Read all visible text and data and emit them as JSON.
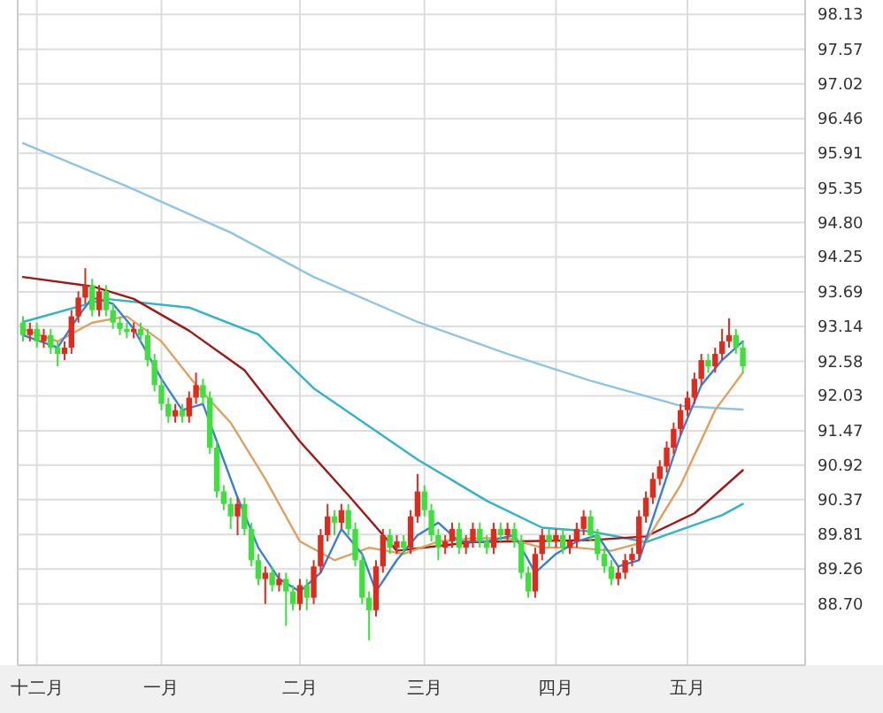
{
  "chart_data": {
    "type": "candlestick",
    "categories": [
      null,
      null,
      "十二月",
      null,
      null,
      null,
      null,
      null,
      null,
      null,
      null,
      null,
      null,
      null,
      null,
      null,
      null,
      null,
      null,
      null,
      "一月",
      null,
      null,
      null,
      null,
      null,
      null,
      null,
      null,
      null,
      null,
      null,
      null,
      null,
      null,
      null,
      null,
      null,
      null,
      null,
      "二月",
      null,
      null,
      null,
      null,
      null,
      null,
      null,
      null,
      null,
      null,
      null,
      null,
      null,
      null,
      null,
      null,
      null,
      "三月",
      null,
      null,
      null,
      null,
      null,
      null,
      null,
      null,
      null,
      null,
      null,
      null,
      null,
      null,
      null,
      null,
      null,
      null,
      "四月",
      null,
      null,
      null,
      null,
      null,
      null,
      null,
      null,
      null,
      null,
      null,
      null,
      null,
      null,
      null,
      null,
      null,
      null,
      "五月",
      null,
      null,
      null,
      null,
      null,
      null,
      null,
      null
    ],
    "ohlc": [
      [
        93.2,
        93.3,
        92.9,
        93.0
      ],
      [
        93.0,
        93.2,
        92.9,
        93.1
      ],
      [
        93.1,
        93.2,
        92.8,
        92.9
      ],
      [
        92.9,
        93.1,
        92.8,
        93.0
      ],
      [
        93.0,
        93.1,
        92.7,
        92.8
      ],
      [
        92.8,
        92.9,
        92.5,
        92.7
      ],
      [
        92.7,
        92.9,
        92.6,
        92.8
      ],
      [
        92.8,
        93.4,
        92.7,
        93.3
      ],
      [
        93.3,
        93.7,
        93.2,
        93.6
      ],
      [
        93.6,
        94.07,
        93.5,
        93.8
      ],
      [
        93.8,
        93.9,
        93.3,
        93.4
      ],
      [
        93.4,
        93.8,
        93.3,
        93.7
      ],
      [
        93.7,
        93.8,
        93.3,
        93.4
      ],
      [
        93.4,
        93.5,
        93.1,
        93.2
      ],
      [
        93.2,
        93.3,
        93.0,
        93.1
      ],
      [
        93.1,
        93.2,
        92.95,
        93.05
      ],
      [
        93.05,
        93.2,
        92.95,
        93.1
      ],
      [
        93.1,
        93.2,
        92.9,
        93.0
      ],
      [
        93.0,
        93.1,
        92.5,
        92.6
      ],
      [
        92.6,
        92.7,
        92.1,
        92.2
      ],
      [
        92.2,
        92.3,
        91.8,
        91.9
      ],
      [
        91.9,
        92.0,
        91.6,
        91.7
      ],
      [
        91.7,
        91.9,
        91.6,
        91.8
      ],
      [
        91.8,
        91.9,
        91.6,
        91.7
      ],
      [
        91.7,
        92.1,
        91.6,
        92.0
      ],
      [
        92.0,
        92.4,
        91.9,
        92.2
      ],
      [
        92.2,
        92.3,
        91.9,
        92.0
      ],
      [
        92.0,
        92.1,
        91.1,
        91.2
      ],
      [
        91.2,
        91.3,
        90.4,
        90.5
      ],
      [
        90.5,
        90.6,
        90.2,
        90.3
      ],
      [
        90.3,
        90.4,
        89.9,
        90.1
      ],
      [
        90.1,
        90.4,
        89.8,
        90.3
      ],
      [
        90.3,
        90.4,
        89.8,
        89.9
      ],
      [
        89.9,
        90.0,
        89.3,
        89.4
      ],
      [
        89.4,
        89.5,
        89.0,
        89.1
      ],
      [
        89.1,
        89.3,
        88.7,
        89.2
      ],
      [
        89.2,
        89.3,
        88.9,
        89.0
      ],
      [
        89.0,
        89.2,
        88.9,
        89.1
      ],
      [
        89.1,
        89.2,
        88.35,
        88.9
      ],
      [
        88.9,
        89.0,
        88.6,
        88.7
      ],
      [
        88.7,
        89.1,
        88.6,
        89.0
      ],
      [
        89.0,
        89.1,
        88.6,
        88.8
      ],
      [
        88.8,
        89.4,
        88.7,
        89.3
      ],
      [
        89.3,
        89.9,
        89.2,
        89.8
      ],
      [
        89.8,
        90.3,
        89.7,
        90.1
      ],
      [
        90.1,
        90.2,
        89.8,
        90.0
      ],
      [
        90.0,
        90.3,
        89.9,
        90.2
      ],
      [
        90.2,
        90.3,
        89.8,
        89.9
      ],
      [
        89.9,
        90.0,
        89.3,
        89.4
      ],
      [
        89.4,
        89.5,
        88.7,
        88.8
      ],
      [
        88.8,
        88.9,
        88.12,
        88.6
      ],
      [
        88.6,
        89.4,
        88.5,
        89.3
      ],
      [
        89.3,
        89.9,
        89.2,
        89.8
      ],
      [
        89.8,
        89.9,
        89.5,
        89.6
      ],
      [
        89.6,
        89.8,
        89.5,
        89.7
      ],
      [
        89.7,
        89.8,
        89.5,
        89.6
      ],
      [
        89.6,
        90.2,
        89.5,
        90.1
      ],
      [
        90.1,
        90.78,
        90.0,
        90.5
      ],
      [
        90.5,
        90.6,
        90.1,
        90.2
      ],
      [
        90.2,
        90.3,
        89.7,
        89.8
      ],
      [
        89.8,
        89.9,
        89.4,
        89.6
      ],
      [
        89.6,
        89.8,
        89.5,
        89.7
      ],
      [
        89.7,
        90.0,
        89.6,
        89.9
      ],
      [
        89.9,
        90.0,
        89.5,
        89.6
      ],
      [
        89.6,
        89.8,
        89.5,
        89.7
      ],
      [
        89.7,
        90.0,
        89.6,
        89.9
      ],
      [
        89.9,
        90.0,
        89.6,
        89.7
      ],
      [
        89.7,
        89.8,
        89.5,
        89.6
      ],
      [
        89.6,
        90.0,
        89.5,
        89.9
      ],
      [
        89.9,
        90.0,
        89.7,
        89.8
      ],
      [
        89.8,
        90.0,
        89.7,
        89.9
      ],
      [
        89.9,
        90.0,
        89.6,
        89.7
      ],
      [
        89.7,
        89.8,
        89.1,
        89.2
      ],
      [
        89.2,
        89.3,
        88.8,
        88.9
      ],
      [
        88.9,
        89.6,
        88.8,
        89.5
      ],
      [
        89.5,
        89.9,
        89.4,
        89.8
      ],
      [
        89.8,
        89.9,
        89.6,
        89.7
      ],
      [
        89.7,
        89.9,
        89.6,
        89.8
      ],
      [
        89.8,
        89.9,
        89.5,
        89.6
      ],
      [
        89.6,
        89.8,
        89.5,
        89.7
      ],
      [
        89.7,
        90.0,
        89.6,
        89.9
      ],
      [
        89.9,
        90.2,
        89.8,
        90.1
      ],
      [
        90.1,
        90.2,
        89.7,
        89.8
      ],
      [
        89.8,
        89.9,
        89.4,
        89.5
      ],
      [
        89.5,
        89.6,
        89.2,
        89.3
      ],
      [
        89.3,
        89.4,
        89.0,
        89.1
      ],
      [
        89.1,
        89.3,
        89.0,
        89.2
      ],
      [
        89.2,
        89.5,
        89.1,
        89.4
      ],
      [
        89.4,
        89.6,
        89.3,
        89.5
      ],
      [
        89.5,
        90.2,
        89.4,
        90.1
      ],
      [
        90.1,
        90.5,
        90.0,
        90.4
      ],
      [
        90.4,
        90.8,
        90.3,
        90.7
      ],
      [
        90.7,
        91.0,
        90.6,
        90.9
      ],
      [
        90.9,
        91.3,
        90.8,
        91.2
      ],
      [
        91.2,
        91.6,
        91.1,
        91.5
      ],
      [
        91.5,
        91.9,
        91.4,
        91.8
      ],
      [
        91.8,
        92.1,
        91.7,
        92.0
      ],
      [
        92.0,
        92.4,
        91.9,
        92.3
      ],
      [
        92.3,
        92.7,
        92.2,
        92.6
      ],
      [
        92.6,
        92.7,
        92.4,
        92.5
      ],
      [
        92.5,
        92.8,
        92.4,
        92.7
      ],
      [
        92.7,
        93.1,
        92.6,
        92.9
      ],
      [
        92.9,
        93.27,
        92.8,
        93.0
      ],
      [
        93.0,
        93.1,
        92.7,
        92.8
      ],
      [
        92.8,
        92.9,
        92.4,
        92.5
      ]
    ],
    "colors": [
      "#3de03d",
      "#e02a1e",
      "#3de03d",
      "#e02a1e",
      "#3de03d",
      "#3de03d",
      "#e02a1e",
      "#e02a1e",
      "#e02a1e",
      "#e02a1e",
      "#3de03d",
      "#e02a1e",
      "#3de03d",
      "#3de03d",
      "#3de03d",
      "#3de03d",
      "#e02a1e",
      "#3de03d",
      "#3de03d",
      "#3de03d",
      "#3de03d",
      "#3de03d",
      "#e02a1e",
      "#3de03d",
      "#e02a1e",
      "#e02a1e",
      "#3de03d",
      "#3de03d",
      "#3de03d",
      "#3de03d",
      "#3de03d",
      "#e02a1e",
      "#3de03d",
      "#3de03d",
      "#3de03d",
      "#e02a1e",
      "#3de03d",
      "#e02a1e",
      "#3de03d",
      "#3de03d",
      "#e02a1e",
      "#3de03d",
      "#e02a1e",
      "#e02a1e",
      "#e02a1e",
      "#3de03d",
      "#e02a1e",
      "#3de03d",
      "#3de03d",
      "#3de03d",
      "#3de03d",
      "#e02a1e",
      "#e02a1e",
      "#3de03d",
      "#e02a1e",
      "#3de03d",
      "#e02a1e",
      "#e02a1e",
      "#3de03d",
      "#3de03d",
      "#3de03d",
      "#e02a1e",
      "#e02a1e",
      "#3de03d",
      "#e02a1e",
      "#e02a1e",
      "#3de03d",
      "#3de03d",
      "#e02a1e",
      "#3de03d",
      "#e02a1e",
      "#3de03d",
      "#3de03d",
      "#3de03d",
      "#e02a1e",
      "#e02a1e",
      "#3de03d",
      "#e02a1e",
      "#3de03d",
      "#e02a1e",
      "#e02a1e",
      "#e02a1e",
      "#3de03d",
      "#3de03d",
      "#3de03d",
      "#3de03d",
      "#e02a1e",
      "#e02a1e",
      "#e02a1e",
      "#e02a1e",
      "#e02a1e",
      "#e02a1e",
      "#e02a1e",
      "#e02a1e",
      "#e02a1e",
      "#e02a1e",
      "#e02a1e",
      "#e02a1e",
      "#e02a1e",
      "#3de03d",
      "#e02a1e",
      "#e02a1e",
      "#e02a1e",
      "#3de03d",
      "#3de03d"
    ],
    "series": [
      {
        "type": "line",
        "color": "#90c4e4",
        "values": [
          96.07,
          null,
          null,
          null,
          null,
          null,
          null,
          null,
          null,
          null,
          null,
          null,
          null,
          null,
          null,
          95.38,
          null,
          null,
          null,
          null,
          null,
          null,
          null,
          null,
          null,
          null,
          null,
          null,
          null,
          null,
          94.64,
          null,
          null,
          null,
          null,
          null,
          null,
          null,
          null,
          null,
          null,
          null,
          93.93,
          null,
          null,
          null,
          null,
          null,
          null,
          null,
          null,
          null,
          null,
          null,
          null,
          null,
          null,
          93.21,
          null,
          null,
          null,
          null,
          null,
          null,
          null,
          null,
          null,
          null,
          null,
          null,
          92.7,
          null,
          null,
          null,
          null,
          null,
          null,
          null,
          null,
          null,
          null,
          null,
          92.27,
          null,
          null,
          null,
          null,
          null,
          null,
          null,
          null,
          null,
          null,
          null,
          null,
          91.87,
          null,
          null,
          null,
          null,
          null,
          null,
          null,
          null,
          91.81
        ]
      },
      {
        "type": "line",
        "color": "#2fb4c8",
        "values": [
          93.21,
          null,
          null,
          null,
          null,
          null,
          null,
          null,
          null,
          null,
          null,
          null,
          93.58,
          null,
          null,
          null,
          null,
          null,
          null,
          null,
          null,
          null,
          null,
          null,
          93.44,
          null,
          null,
          null,
          null,
          null,
          null,
          null,
          null,
          null,
          93.01,
          null,
          null,
          null,
          null,
          null,
          null,
          null,
          92.15,
          null,
          null,
          null,
          null,
          null,
          null,
          null,
          null,
          null,
          null,
          null,
          null,
          null,
          null,
          91.01,
          null,
          null,
          null,
          null,
          null,
          null,
          null,
          null,
          null,
          90.35,
          null,
          null,
          null,
          null,
          null,
          null,
          null,
          89.92,
          null,
          null,
          null,
          null,
          null,
          null,
          89.86,
          null,
          null,
          null,
          null,
          null,
          null,
          null,
          89.69,
          null,
          null,
          null,
          null,
          null,
          null,
          null,
          null,
          null,
          null,
          90.12,
          null,
          null,
          90.3
        ]
      },
      {
        "type": "line",
        "color": "#a01818",
        "values": [
          93.93,
          null,
          null,
          null,
          null,
          null,
          null,
          null,
          null,
          null,
          93.78,
          null,
          null,
          null,
          null,
          null,
          93.58,
          null,
          null,
          null,
          null,
          null,
          null,
          null,
          93.07,
          null,
          null,
          null,
          null,
          null,
          null,
          null,
          92.44,
          null,
          null,
          null,
          null,
          null,
          null,
          null,
          91.3,
          null,
          null,
          null,
          null,
          null,
          null,
          90.44,
          null,
          null,
          null,
          null,
          null,
          null,
          89.55,
          null,
          null,
          null,
          null,
          null,
          null,
          null,
          null,
          null,
          null,
          89.69,
          null,
          null,
          null,
          null,
          null,
          null,
          null,
          null,
          null,
          null,
          null,
          null,
          null,
          null,
          null,
          null,
          89.72,
          null,
          null,
          null,
          null,
          null,
          null,
          null,
          89.78,
          null,
          null,
          null,
          null,
          null,
          null,
          90.15,
          null,
          null,
          null,
          null,
          null,
          null,
          90.84
        ]
      },
      {
        "type": "line",
        "color": "#e0a060",
        "values": [
          93.1,
          null,
          null,
          null,
          null,
          92.9,
          null,
          null,
          null,
          null,
          93.2,
          null,
          null,
          null,
          null,
          93.3,
          null,
          null,
          null,
          null,
          92.9,
          null,
          null,
          null,
          null,
          92.2,
          null,
          null,
          null,
          null,
          91.6,
          null,
          null,
          null,
          null,
          90.7,
          null,
          null,
          null,
          null,
          89.7,
          null,
          null,
          null,
          null,
          89.4,
          null,
          null,
          null,
          null,
          89.6,
          null,
          null,
          null,
          null,
          89.5,
          null,
          null,
          null,
          null,
          89.7,
          null,
          null,
          null,
          null,
          89.75,
          null,
          null,
          null,
          null,
          89.75,
          null,
          null,
          null,
          null,
          89.6,
          null,
          null,
          null,
          null,
          89.6,
          null,
          null,
          null,
          null,
          89.55,
          null,
          null,
          null,
          null,
          89.7,
          null,
          null,
          null,
          null,
          90.6,
          null,
          null,
          null,
          null,
          91.8,
          null,
          null,
          null,
          92.4
        ]
      },
      {
        "type": "line",
        "color": "#3a7fd0",
        "values": [
          93.0,
          null,
          null,
          null,
          null,
          92.8,
          null,
          null,
          93.3,
          null,
          93.6,
          null,
          null,
          93.5,
          null,
          null,
          93.1,
          null,
          null,
          null,
          92.3,
          null,
          null,
          91.8,
          null,
          null,
          91.9,
          null,
          91.3,
          null,
          null,
          90.4,
          null,
          null,
          89.6,
          null,
          null,
          89.1,
          null,
          null,
          88.9,
          null,
          null,
          89.2,
          null,
          null,
          89.9,
          null,
          null,
          89.5,
          null,
          88.9,
          null,
          null,
          89.4,
          null,
          null,
          89.8,
          null,
          null,
          90.0,
          null,
          null,
          89.7,
          null,
          null,
          null,
          89.7,
          null,
          null,
          null,
          89.8,
          null,
          null,
          89.2,
          null,
          null,
          89.5,
          null,
          null,
          89.7,
          null,
          null,
          89.8,
          null,
          null,
          89.3,
          null,
          null,
          89.4,
          null,
          null,
          90.4,
          null,
          null,
          91.4,
          null,
          null,
          92.2,
          null,
          null,
          92.6,
          null,
          null,
          92.9
        ]
      }
    ],
    "ylim": [
      87.72,
      98.36
    ],
    "yticks": [
      98.13,
      97.57,
      97.02,
      96.46,
      95.91,
      95.35,
      {
        "value": 94.8,
        "label": "94.80"
      },
      94.25,
      93.69,
      93.14,
      92.58,
      92.03,
      91.47,
      90.92,
      90.37,
      89.81,
      89.26,
      {
        "value": 88.7,
        "label": "88.70"
      }
    ],
    "grid": true
  }
}
